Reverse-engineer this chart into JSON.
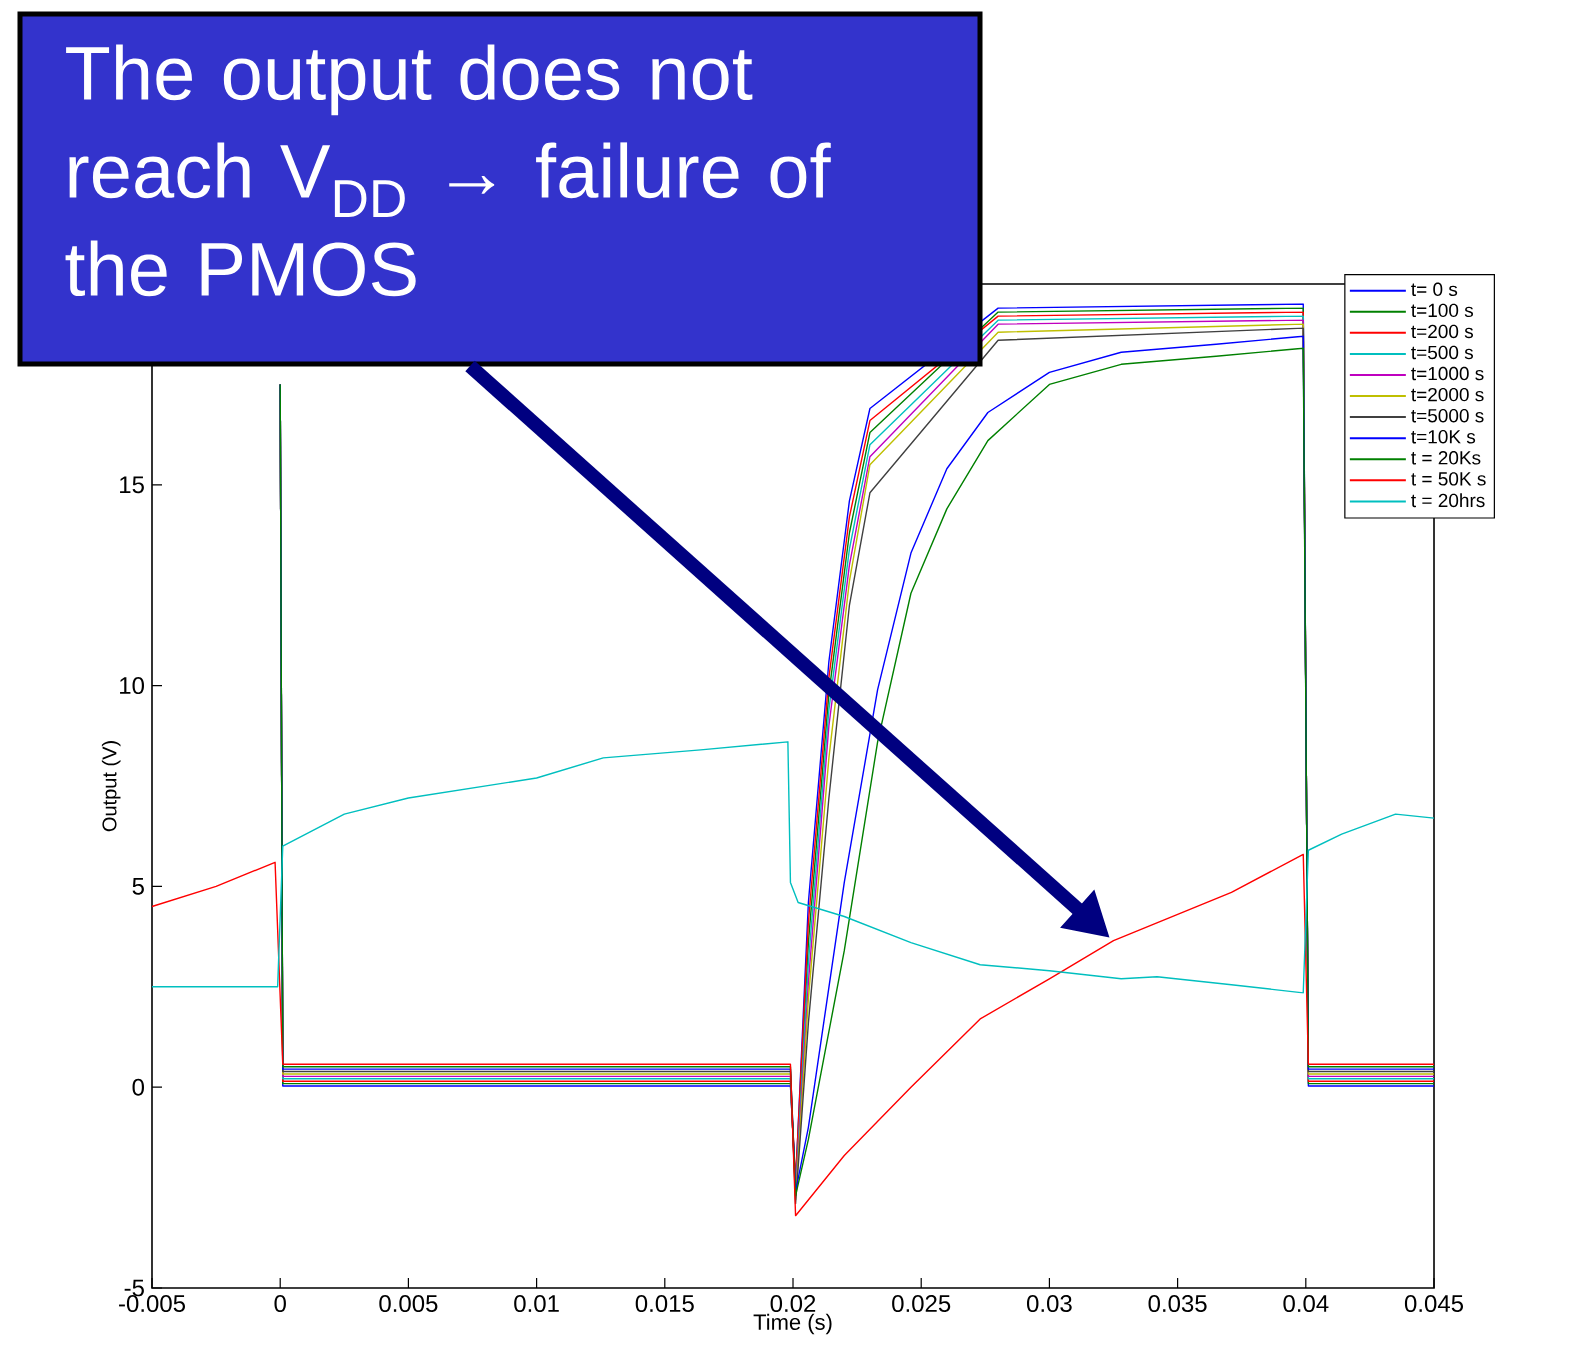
{
  "chart_data": {
    "type": "line",
    "xlabel": "Time (s)",
    "ylabel": "Output   (V)",
    "xlim": [
      -0.005,
      0.045
    ],
    "ylim": [
      -5,
      20
    ],
    "xticks": [
      -0.005,
      0,
      0.005,
      0.01,
      0.015,
      0.02,
      0.025,
      0.03,
      0.035,
      0.04,
      0.045
    ],
    "yticks": [
      -5,
      0,
      5,
      10,
      15
    ],
    "legend": "top right",
    "line_style": "solid",
    "annotations": [
      "The output does not reach V$_{DD}$ → failure of the PMOS"
    ],
    "series": [
      {
        "name": "t= 0 s",
        "color": "#0000ff",
        "x": [
          0,
          0.0001,
          0.0199,
          0.0201,
          0.0206,
          0.0214,
          0.0222,
          0.023,
          0.028,
          0.0399,
          0.0401,
          0.045
        ],
        "values": [
          17.5,
          0.03,
          0.03,
          -2.4,
          4.6,
          10.6,
          14.6,
          16.9,
          19.4,
          19.5,
          0.03,
          0.03
        ]
      },
      {
        "name": "t=100 s",
        "color": "#008000",
        "x": [
          0,
          0.0001,
          0.0199,
          0.0201,
          0.0206,
          0.0214,
          0.0222,
          0.023,
          0.028,
          0.0399,
          0.0401,
          0.045
        ],
        "values": [
          17.5,
          0.09,
          0.09,
          -2.5,
          3.6,
          9.8,
          13.8,
          16.3,
          19.3,
          19.4,
          0.09,
          0.09
        ]
      },
      {
        "name": "t=200 s",
        "color": "#ff0000",
        "x": [
          0,
          0.0001,
          0.0199,
          0.0201,
          0.0206,
          0.0214,
          0.0222,
          0.023,
          0.028,
          0.0399,
          0.0401,
          0.045
        ],
        "values": [
          17.5,
          0.15,
          0.15,
          -2.3,
          4.1,
          10.2,
          14.2,
          16.6,
          19.2,
          19.3,
          0.15,
          0.15
        ]
      },
      {
        "name": "t=500 s",
        "color": "#00bfbf",
        "x": [
          0,
          0.0001,
          0.0199,
          0.0201,
          0.0206,
          0.0214,
          0.0222,
          0.023,
          0.028,
          0.0399,
          0.0401,
          0.045
        ],
        "values": [
          17.5,
          0.21,
          0.21,
          -2.6,
          3.1,
          9.4,
          13.4,
          16.0,
          19.1,
          19.2,
          0.21,
          0.21
        ]
      },
      {
        "name": "t=1000 s",
        "color": "#bf00bf",
        "x": [
          0,
          0.0001,
          0.0199,
          0.0201,
          0.0206,
          0.0214,
          0.0222,
          0.023,
          0.028,
          0.0399,
          0.0401,
          0.045
        ],
        "values": [
          17.5,
          0.27,
          0.27,
          -2.7,
          2.6,
          9.0,
          13.0,
          15.7,
          19.0,
          19.1,
          0.27,
          0.27
        ]
      },
      {
        "name": "t=2000 s",
        "color": "#bfbf00",
        "x": [
          0,
          0.0001,
          0.0199,
          0.0201,
          0.0206,
          0.0214,
          0.0222,
          0.023,
          0.028,
          0.0399,
          0.0401,
          0.045
        ],
        "values": [
          17.5,
          0.33,
          0.33,
          -2.8,
          2.2,
          8.2,
          12.6,
          15.5,
          18.8,
          19.0,
          0.33,
          0.33
        ]
      },
      {
        "name": "t=5000 s",
        "color": "#404040",
        "x": [
          0,
          0.0001,
          0.0199,
          0.0201,
          0.0206,
          0.0214,
          0.0222,
          0.023,
          0.028,
          0.0399,
          0.0401,
          0.045
        ],
        "values": [
          17.5,
          0.39,
          0.39,
          -2.9,
          1.6,
          7.2,
          12.0,
          14.8,
          18.6,
          18.9,
          0.39,
          0.39
        ]
      },
      {
        "name": "t=10K s",
        "color": "#0000ff",
        "x": [
          0,
          0.0001,
          0.0199,
          0.0201,
          0.0206,
          0.022,
          0.0233,
          0.0246,
          0.026,
          0.0276,
          0.03,
          0.0328,
          0.0365,
          0.0399,
          0.0401,
          0.045
        ],
        "values": [
          17.5,
          0.45,
          0.45,
          -2.6,
          -1.0,
          5.1,
          9.9,
          13.3,
          15.4,
          16.8,
          17.8,
          18.3,
          18.5,
          18.7,
          0.45,
          0.45
        ]
      },
      {
        "name": "t = 20Ks",
        "color": "#008000",
        "x": [
          0,
          0.0001,
          0.0199,
          0.0201,
          0.0206,
          0.022,
          0.0233,
          0.0246,
          0.026,
          0.0276,
          0.03,
          0.0328,
          0.0365,
          0.0399,
          0.0401,
          0.045
        ],
        "values": [
          17.5,
          0.51,
          0.51,
          -2.7,
          -1.3,
          3.4,
          8.6,
          12.3,
          14.4,
          16.1,
          17.5,
          18.0,
          18.2,
          18.4,
          0.51,
          0.51
        ]
      },
      {
        "name": "t = 50K s",
        "color": "#ff0000",
        "x": [
          -0.005,
          -0.0025,
          -0.0002,
          0.0001,
          0.0199,
          0.0201,
          0.022,
          0.0246,
          0.0273,
          0.03,
          0.0325,
          0.0371,
          0.0399,
          0.0401,
          0.045
        ],
        "values": [
          4.5,
          5.0,
          5.6,
          0.57,
          0.57,
          -3.2,
          -1.7,
          0.0,
          1.7,
          2.7,
          3.65,
          4.85,
          5.8,
          0.57,
          0.57
        ]
      },
      {
        "name": "t = 20hrs",
        "color": "#00bfbf",
        "x": [
          -0.005,
          -0.0001,
          0.0001,
          0.0025,
          0.005,
          0.01,
          0.0126,
          0.0164,
          0.0198,
          0.0199,
          0.0202,
          0.022,
          0.0246,
          0.0273,
          0.03,
          0.0328,
          0.0342,
          0.0371,
          0.0399,
          0.0401,
          0.0414,
          0.0435,
          0.045
        ],
        "values": [
          2.5,
          2.5,
          6.0,
          6.8,
          7.2,
          7.7,
          8.2,
          8.4,
          8.6,
          5.1,
          4.6,
          4.25,
          3.6,
          3.05,
          2.9,
          2.7,
          2.75,
          2.55,
          2.35,
          5.9,
          6.3,
          6.8,
          6.7
        ]
      }
    ]
  }
}
